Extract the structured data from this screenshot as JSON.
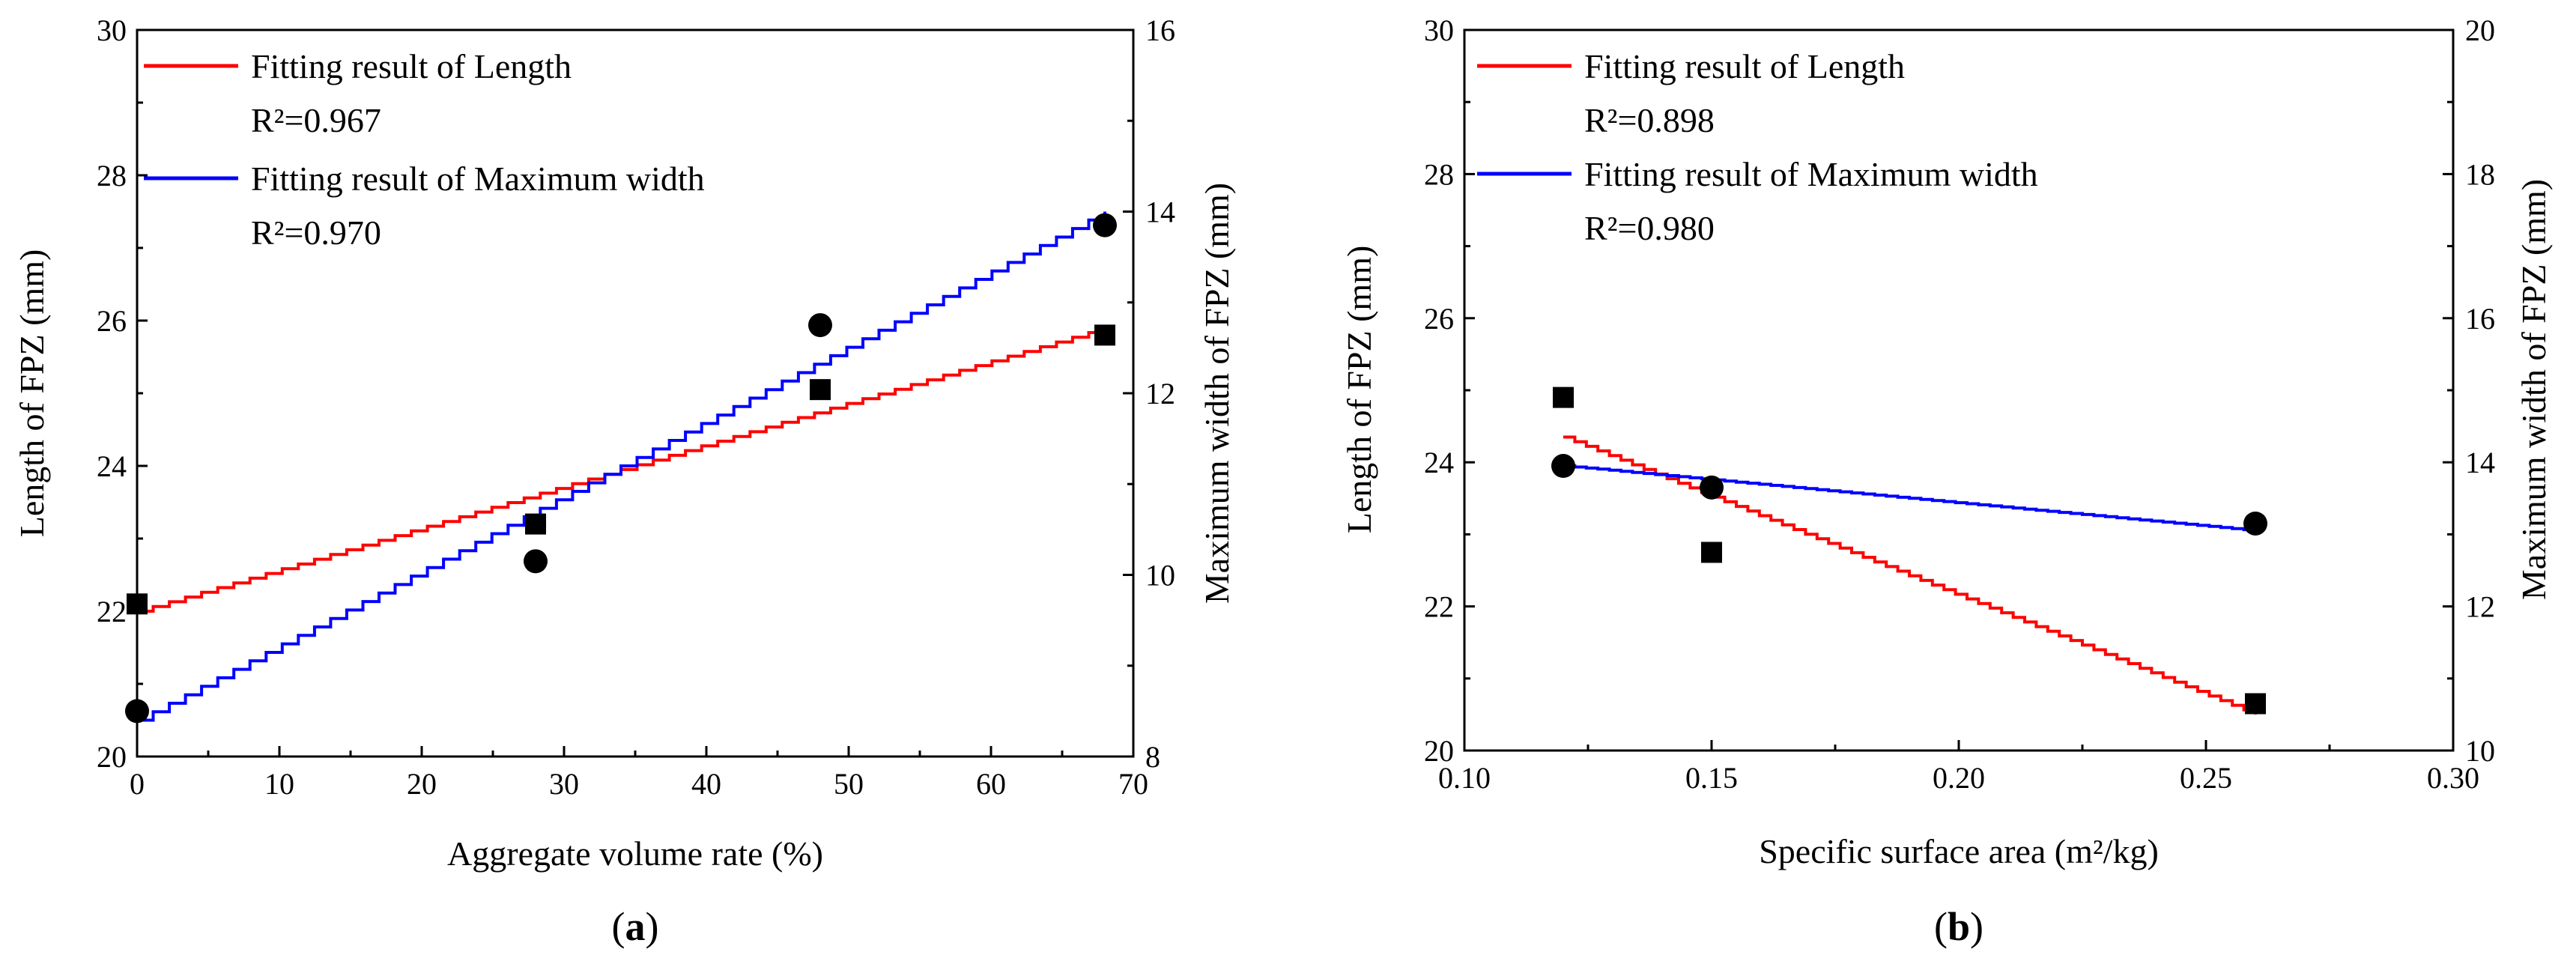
{
  "chart_data": [
    {
      "type": "scatter",
      "label": "a",
      "xlabel": "Aggregate volume rate (%)",
      "ylabel": "Length of FPZ (mm)",
      "y2label": "Maximum width of FPZ (mm)",
      "xlim": [
        0,
        70
      ],
      "ylim": [
        20,
        30
      ],
      "y2lim": [
        8,
        16
      ],
      "xticks": [
        "0",
        "10",
        "20",
        "30",
        "40",
        "50",
        "60",
        "70"
      ],
      "yticks": [
        "20",
        "22",
        "24",
        "26",
        "28",
        "30"
      ],
      "y2ticks": [
        "8",
        "10",
        "12",
        "14",
        "16"
      ],
      "series": [
        {
          "name": "Length",
          "axis": "left",
          "marker": "square",
          "x": [
            0,
            28,
            48,
            68
          ],
          "y": [
            22.1,
            23.2,
            25.05,
            25.8
          ],
          "fit": {
            "label": "Fitting result of Length",
            "r2": "R²=0.967",
            "color": "#ff0000",
            "x": [
              0,
              68
            ],
            "y": [
              22.0,
              25.9
            ]
          }
        },
        {
          "name": "Maximum width",
          "axis": "right",
          "marker": "circle",
          "x": [
            0,
            28,
            48,
            68
          ],
          "y": [
            8.5,
            10.15,
            12.75,
            13.85
          ],
          "fit": {
            "label": "Fitting result of Maximum width",
            "r2": "R²=0.970",
            "color": "#0000ff",
            "x": [
              0,
              68
            ],
            "y": [
              8.4,
              14.0
            ]
          }
        }
      ]
    },
    {
      "type": "scatter",
      "label": "b",
      "xlabel": "Specific surface area (m²/kg)",
      "ylabel": "Length of  FPZ (mm)",
      "y2label": "Maximum width of  FPZ (mm)",
      "xlim": [
        0.1,
        0.3
      ],
      "ylim": [
        20,
        30
      ],
      "y2lim": [
        10,
        20
      ],
      "xticks": [
        "0.10",
        "0.15",
        "0.20",
        "0.25",
        "0.30"
      ],
      "yticks": [
        "20",
        "22",
        "24",
        "26",
        "28",
        "30"
      ],
      "y2ticks": [
        "10",
        "12",
        "14",
        "16",
        "18",
        "20"
      ],
      "series": [
        {
          "name": "Length",
          "axis": "left",
          "marker": "square",
          "x": [
            0.12,
            0.15,
            0.26
          ],
          "y": [
            24.9,
            22.75,
            20.65
          ],
          "fit": {
            "label": "Fitting result of Length",
            "r2": "R²=0.898",
            "color": "#ff0000",
            "x": [
              0.12,
              0.26
            ],
            "y": [
              24.35,
              20.5
            ]
          }
        },
        {
          "name": "Maximum width",
          "axis": "right",
          "marker": "circle",
          "x": [
            0.12,
            0.15,
            0.26
          ],
          "y": [
            13.95,
            13.65,
            13.15
          ],
          "fit": {
            "label": "Fitting result of Maximum width",
            "r2": "R²=0.980",
            "color": "#0000ff",
            "x": [
              0.12,
              0.26
            ],
            "y": [
              13.95,
              13.05
            ]
          }
        }
      ]
    }
  ]
}
